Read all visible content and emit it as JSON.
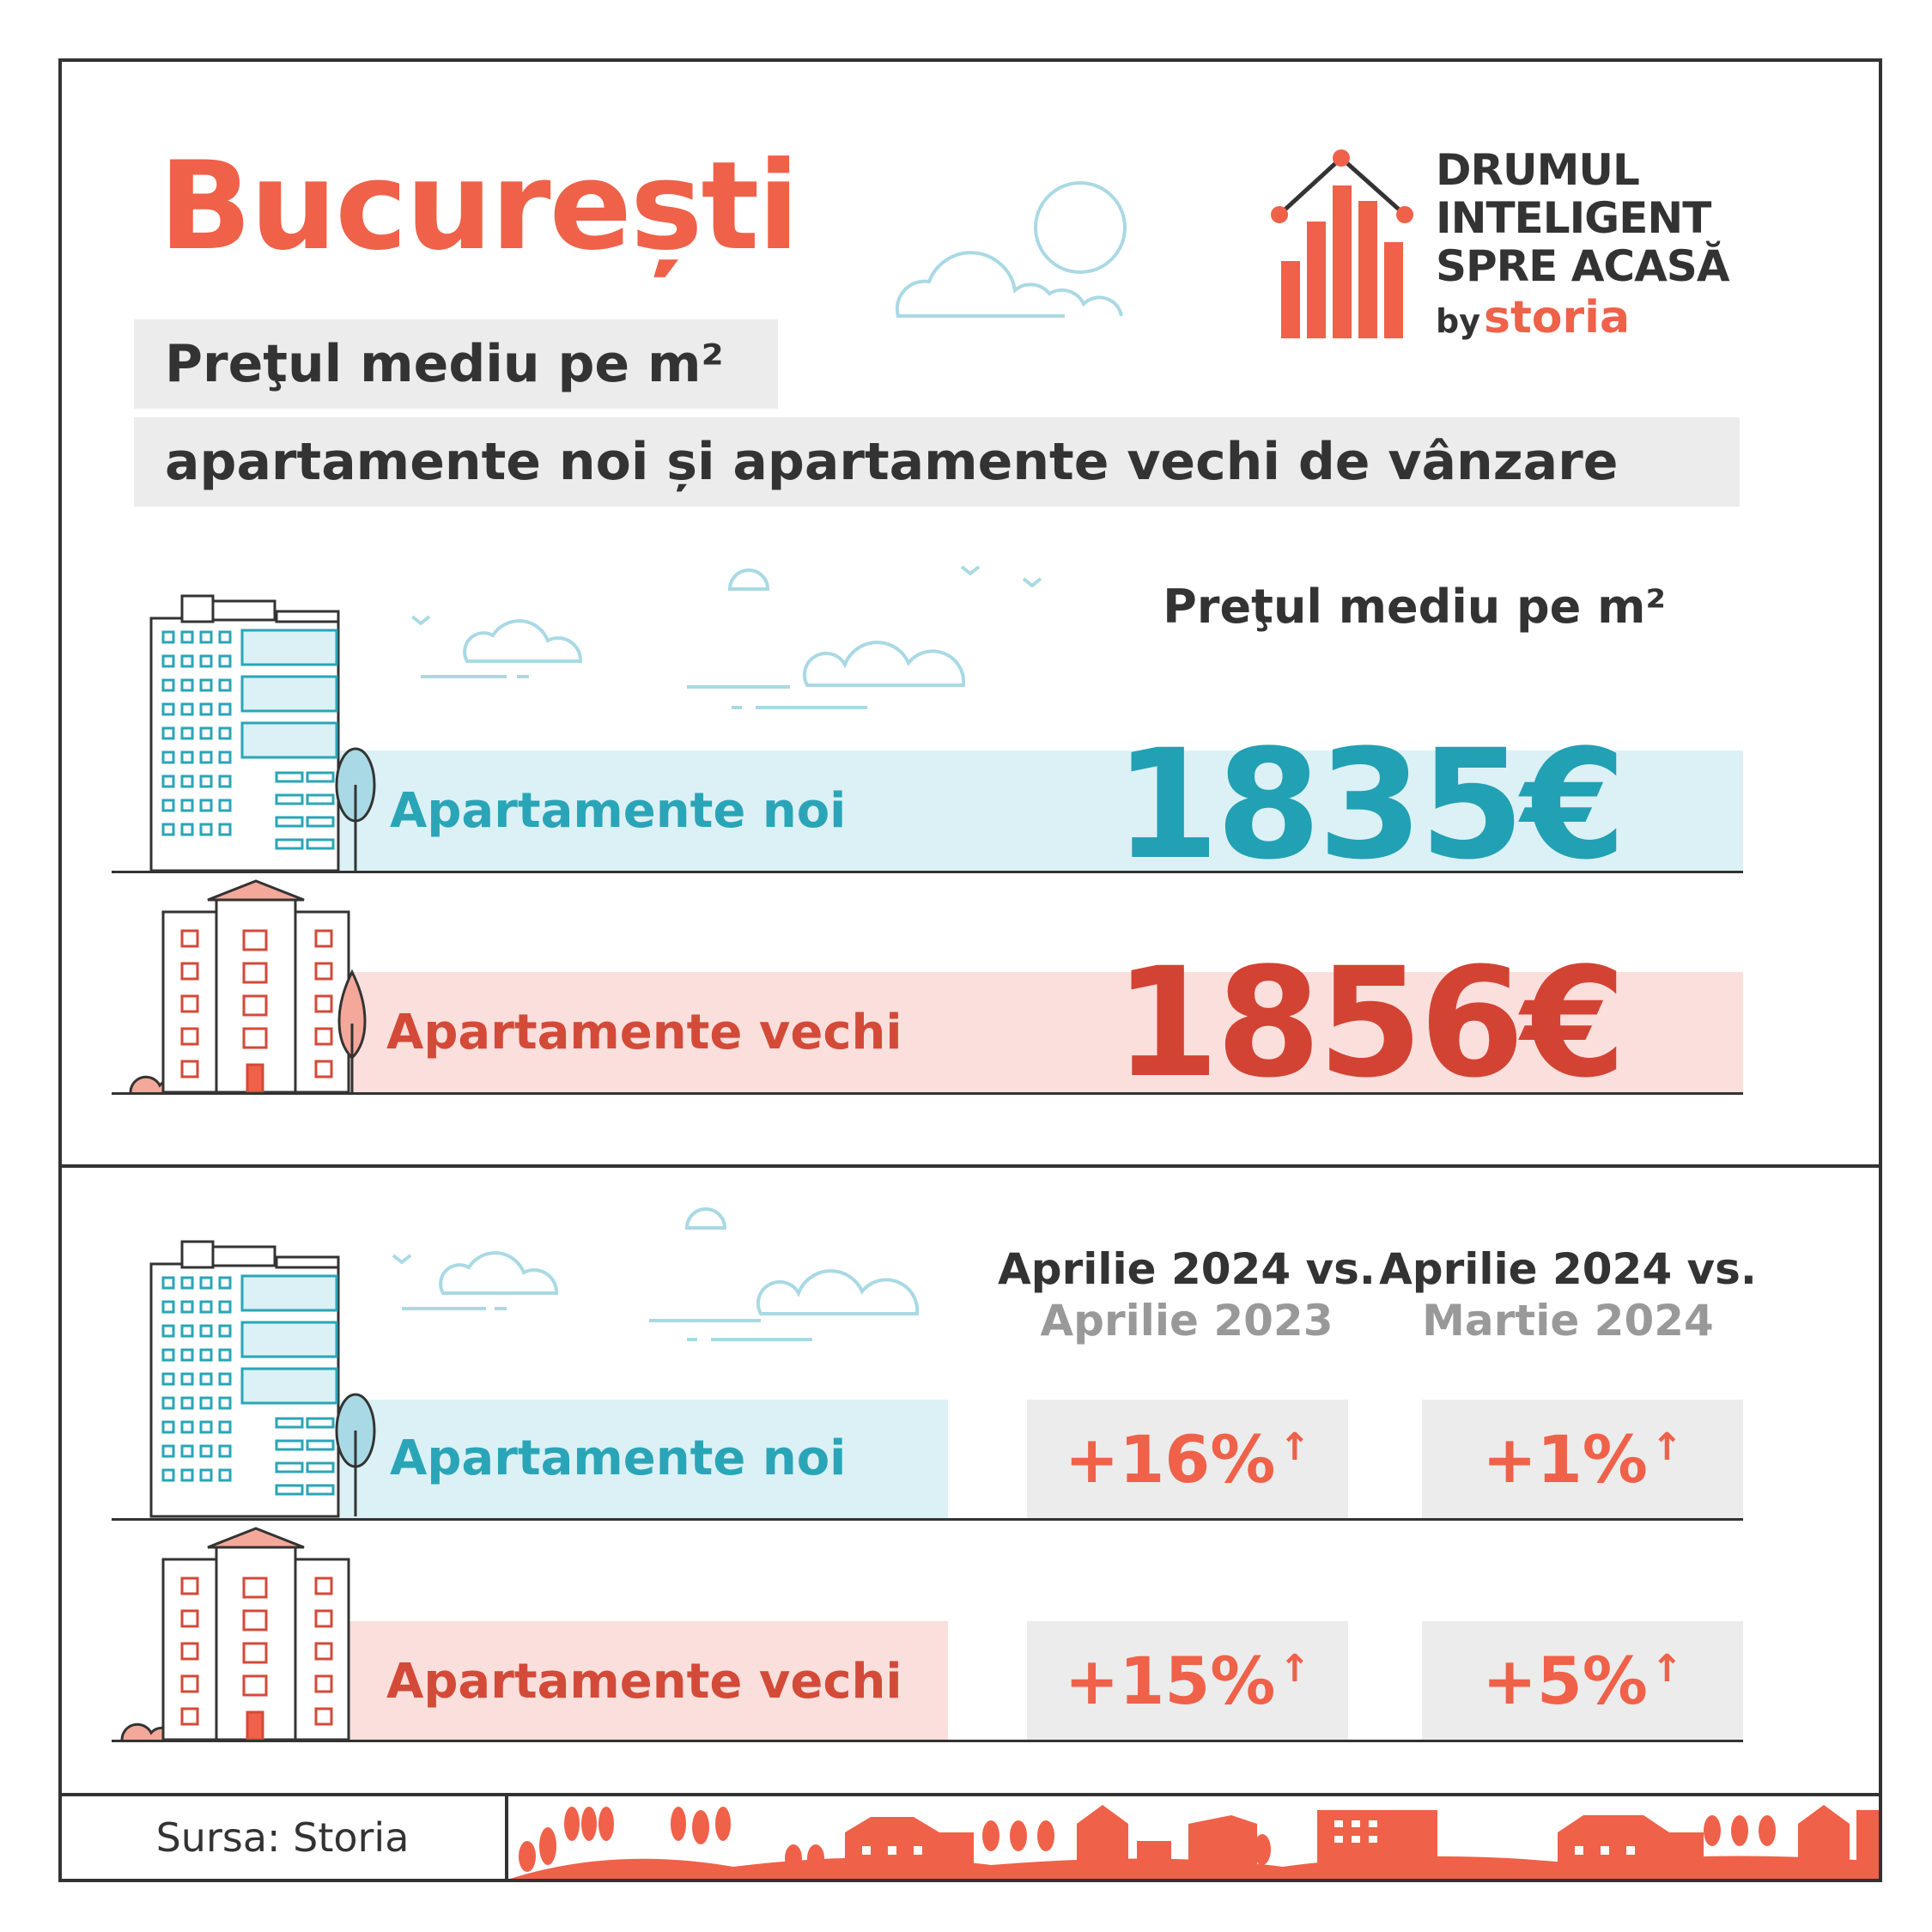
{
  "city_title": "București",
  "subtitle_line1": "Preţul mediu pe m²",
  "subtitle_line2": "apartamente noi și apartamente vechi de vânzare",
  "logo": {
    "line1": "DRUMUL",
    "line2": "INTELIGENT",
    "line3": "SPRE ACASĂ",
    "by": "by",
    "brand": "storia"
  },
  "price_section": {
    "header": "Preţul mediu pe m²",
    "rows": [
      {
        "label": "Apartamente noi",
        "value": "1835€"
      },
      {
        "label": "Apartamente vechi",
        "value": "1856€"
      }
    ]
  },
  "change_section": {
    "col1": {
      "line1": "Aprilie 2024 vs.",
      "line2": "Aprilie 2023"
    },
    "col2": {
      "line1": "Aprilie 2024 vs.",
      "line2": "Martie 2024"
    },
    "rows": [
      {
        "label": "Apartamente noi",
        "yoy": "+16%",
        "mom": "+1%"
      },
      {
        "label": "Apartamente vechi",
        "yoy": "+15%",
        "mom": "+5%"
      }
    ],
    "arrow": "↑"
  },
  "footer": {
    "source": "Sursa: Storia"
  },
  "colors": {
    "accent": "#ef6149",
    "teal": "#22a0b4",
    "red": "#d34333",
    "light_blue": "#dbf1f5",
    "light_pink": "#fbdfdc",
    "grey": "#ececec"
  }
}
